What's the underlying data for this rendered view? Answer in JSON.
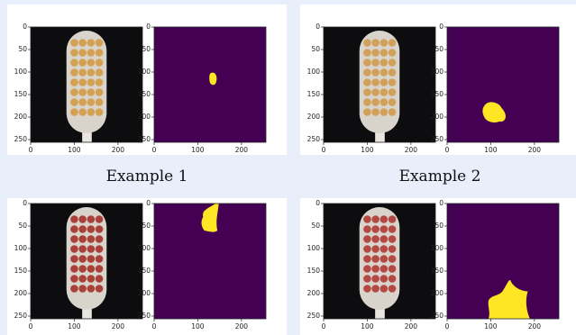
{
  "axes": {
    "lim": [
      0,
      256
    ],
    "xticks": [
      0,
      100,
      200
    ],
    "yticks": [
      0,
      50,
      100,
      150,
      200,
      250
    ]
  },
  "examples": [
    {
      "caption": "Example 1"
    },
    {
      "caption": "Example 2"
    },
    {},
    {}
  ]
}
